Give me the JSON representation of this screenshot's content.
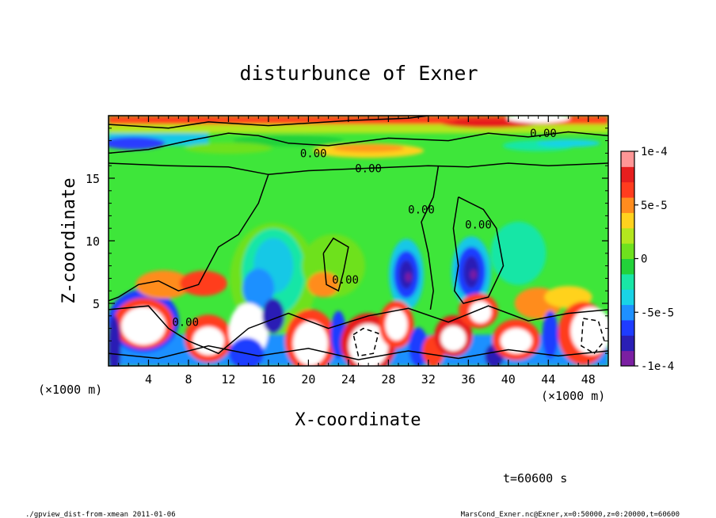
{
  "chart_data": {
    "type": "heatmap",
    "title": "disturbunce of Exner",
    "xlabel": "X-coordinate",
    "ylabel": "Z-coordinate",
    "x_unit": "(×1000 m)",
    "y_unit": "(×1000 m)",
    "xlim": [
      0,
      50
    ],
    "ylim": [
      0,
      20
    ],
    "x_ticks": [
      4,
      8,
      12,
      16,
      20,
      24,
      28,
      32,
      36,
      40,
      44,
      48
    ],
    "y_ticks": [
      5,
      10,
      15
    ],
    "colorbar": {
      "min": -0.0001,
      "max": 0.0001,
      "tick_labels": [
        "1e-4",
        "5e-5",
        "0",
        "-5e-5",
        "-1e-4"
      ],
      "tick_values": [
        0.0001,
        5e-05,
        0,
        -5e-05,
        -0.0001
      ],
      "colors": [
        "#7b1fa2",
        "#2a1fb5",
        "#1e3cff",
        "#1e90ff",
        "#19d3e6",
        "#19e6a6",
        "#22d23a",
        "#6ee11e",
        "#b4e61e",
        "#ffd21e",
        "#ff8c1e",
        "#ff3c1e",
        "#e61e1e",
        "#ff9696"
      ]
    },
    "contour_labels": [
      {
        "text": "0.00",
        "x": 20.5,
        "z": 17.0
      },
      {
        "text": "0.00",
        "x": 26.0,
        "z": 15.8
      },
      {
        "text": "0.00",
        "x": 43.5,
        "z": 18.6
      },
      {
        "text": "0.00",
        "x": 31.3,
        "z": 12.5
      },
      {
        "text": "0.00",
        "x": 37.0,
        "z": 11.3
      },
      {
        "text": "0.00",
        "x": 23.7,
        "z": 6.9
      },
      {
        "text": "0.00",
        "x": 7.7,
        "z": 3.5
      }
    ],
    "features": [
      {
        "kind": "positive-max",
        "x": 3.5,
        "z": 3.2
      },
      {
        "kind": "positive-max",
        "x": 10.0,
        "z": 2.0
      },
      {
        "kind": "positive-max",
        "x": 14.0,
        "z": 2.5
      },
      {
        "kind": "positive-max",
        "x": 20.0,
        "z": 1.8
      },
      {
        "kind": "positive-max",
        "x": 26.0,
        "z": 1.6
      },
      {
        "kind": "positive-max",
        "x": 29.0,
        "z": 3.2
      },
      {
        "kind": "positive-max",
        "x": 34.5,
        "z": 2.3
      },
      {
        "kind": "positive-max",
        "x": 37.0,
        "z": 4.3
      },
      {
        "kind": "positive-max",
        "x": 40.5,
        "z": 2.0
      },
      {
        "kind": "positive-max",
        "x": 48.5,
        "z": 2.5
      },
      {
        "kind": "negative-min",
        "x": 30.0,
        "z": 7.3
      },
      {
        "kind": "negative-min",
        "x": 36.3,
        "z": 7.2
      },
      {
        "kind": "negative-min",
        "x": 15.0,
        "z": 3.5
      }
    ]
  },
  "annotations": {
    "time": "t=60600 s",
    "footer_left": "./gpview_dist-from-xmean  2011-01-06",
    "footer_right": "MarsCond_Exner.nc@Exner,x=0:50000,z=0:20000,t=60600"
  }
}
